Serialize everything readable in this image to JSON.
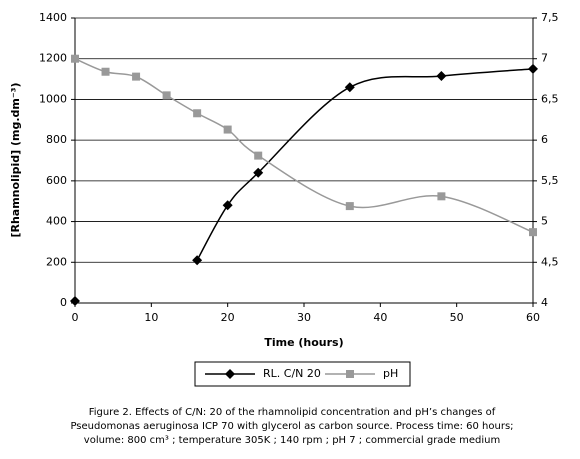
{
  "chart_data": {
    "type": "line",
    "ylabel": "[Rhamnolipid] (mg.dm⁻³)",
    "xlabel": "Time (hours)",
    "x": [
      0,
      4,
      8,
      12,
      16,
      20,
      24,
      36,
      48,
      60
    ],
    "series": [
      {
        "name": "RL. C/N 20",
        "color": "#000000",
        "marker": "diamond",
        "values": [
          10,
          null,
          null,
          null,
          210,
          480,
          640,
          1060,
          1115,
          1150
        ]
      },
      {
        "name": "pH",
        "color": "#999999",
        "marker": "square",
        "axis": "y2",
        "values": [
          7.0,
          6.84,
          6.78,
          6.55,
          6.33,
          6.13,
          5.81,
          5.19,
          5.31,
          4.87
        ]
      }
    ],
    "xlim": [
      0,
      60
    ],
    "xticks": [
      0,
      10,
      20,
      30,
      40,
      50,
      60
    ],
    "ylim": [
      0,
      1400
    ],
    "yticks": [
      0,
      200,
      400,
      600,
      800,
      1000,
      1200,
      1400
    ],
    "y2lim": [
      4,
      7.5
    ],
    "y2ticks": [
      4,
      {
        "value": 4.5,
        "label": "4,5"
      },
      5,
      {
        "value": 5.5,
        "label": "5,5"
      },
      6,
      {
        "value": 6.5,
        "label": "6,5"
      },
      7,
      {
        "value": 7.5,
        "label": "7,5"
      }
    ],
    "grid": true,
    "smooth": true,
    "legend": "bottom",
    "caption": [
      "Figure 2. Effects of C/N: 20 of the rhamnolipid concentration and pH’s changes of",
      "Pseudomonas aeruginosa ICP 70 with glycerol as carbon source. Process time: 60 hours;",
      "volume: 800 cm³ ; temperature 305K ; 140 rpm ; pH 7 ; commercial grade medium"
    ]
  }
}
